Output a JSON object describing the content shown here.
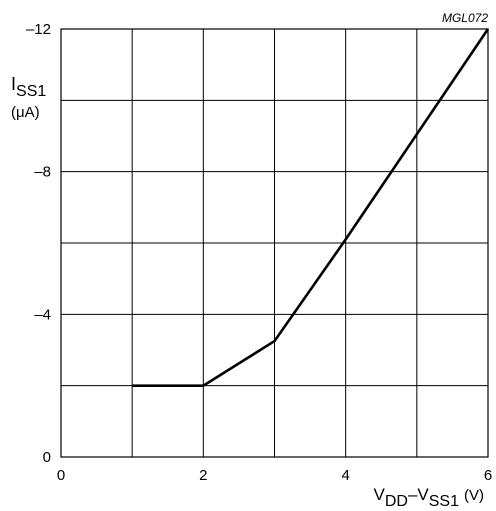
{
  "figure_code": "MGL072",
  "chart_data": {
    "type": "line",
    "ylabel": {
      "main": "I",
      "subscript": "SS1",
      "unit": "(μA)"
    },
    "xlabel": {
      "part1": "V",
      "sub1": "DD",
      "dash": "–V",
      "sub2": "SS1",
      "unit": "(V)"
    },
    "xlim": [
      0,
      6
    ],
    "ylim": [
      0,
      -12
    ],
    "x_ticks": [
      {
        "value": 0,
        "label": "0"
      },
      {
        "value": 2,
        "label": "2"
      },
      {
        "value": 4,
        "label": "4"
      },
      {
        "value": 6,
        "label": "6"
      }
    ],
    "y_ticks": [
      {
        "value": 0,
        "label": "0"
      },
      {
        "value": -4,
        "label": "–4"
      },
      {
        "value": -8,
        "label": "–8"
      },
      {
        "value": -12,
        "label": "–12"
      }
    ],
    "grid": true,
    "grid_x_step": 1,
    "grid_y_step": 2,
    "series": [
      {
        "color": "#000000",
        "x": [
          1,
          2,
          3,
          4,
          6
        ],
        "y": [
          -2.0,
          -2.0,
          -3.25,
          -6.1,
          -12.0
        ]
      }
    ]
  }
}
